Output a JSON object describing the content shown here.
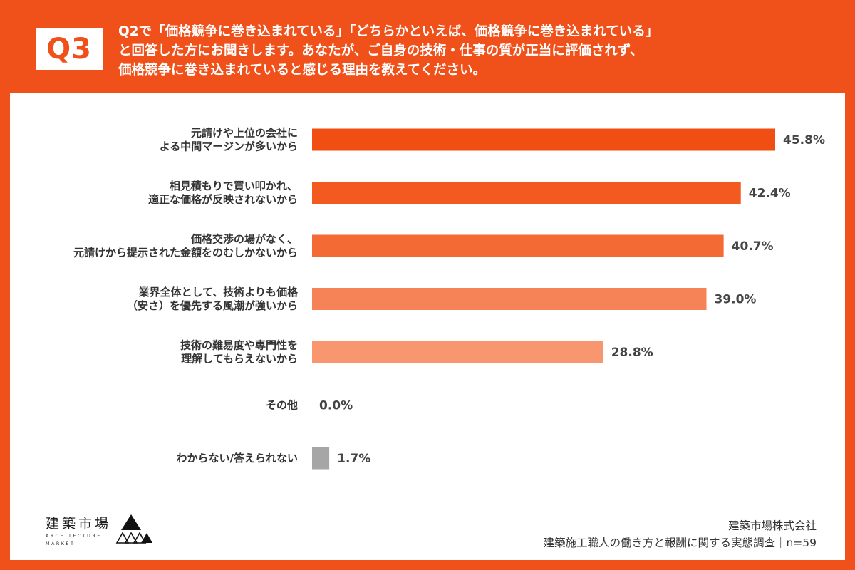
{
  "question": {
    "badge": "Q3",
    "lines": [
      "Q2で「価格競争に巻き込まれている」「どちらかといえば、価格競争に巻き込まれている」",
      "と回答した方にお聞きします。あなたが、ご自身の技術・仕事の質が正当に評価されず、",
      "価格競争に巻き込まれていると感じる理由を教えてください。"
    ]
  },
  "colors": {
    "brand": "#f0501a",
    "panel": "#ffffff",
    "text": "#333333"
  },
  "chart_data": {
    "type": "bar",
    "orientation": "horizontal",
    "categories": [
      [
        "元請けや上位の会社に",
        "よる中間マージンが多いから"
      ],
      [
        "相見積もりで買い叩かれ、",
        "適正な価格が反映されないから"
      ],
      [
        "価格交渉の場がなく、",
        "元請けから提示された金額をのむしかないから"
      ],
      [
        "業界全体として、技術よりも価格",
        "（安さ）を優先する風潮が強いから"
      ],
      [
        "技術の難易度や専門性を",
        "理解してもらえないから"
      ],
      [
        "その他"
      ],
      [
        "わからない/答えられない"
      ]
    ],
    "values": [
      45.8,
      42.4,
      40.7,
      39.0,
      28.8,
      0.0,
      1.7
    ],
    "value_labels": [
      "45.8%",
      "42.4%",
      "40.7%",
      "39.0%",
      "28.8%",
      "0.0%",
      "1.7%"
    ],
    "bar_colors": [
      "#f04e12",
      "#f25a20",
      "#f46a35",
      "#f68257",
      "#f89670",
      "#f89670",
      "#a6a6a6"
    ],
    "xlim": [
      0,
      45.8
    ],
    "grid": false,
    "legend": "none"
  },
  "logo": {
    "name": "建築市場",
    "sub1": "ARCHITECTURE",
    "sub2": "MARKET"
  },
  "footer": {
    "company": "建築市場株式会社",
    "survey": "建築施工職人の働き方と報酬に関する実態調査｜n=59"
  }
}
